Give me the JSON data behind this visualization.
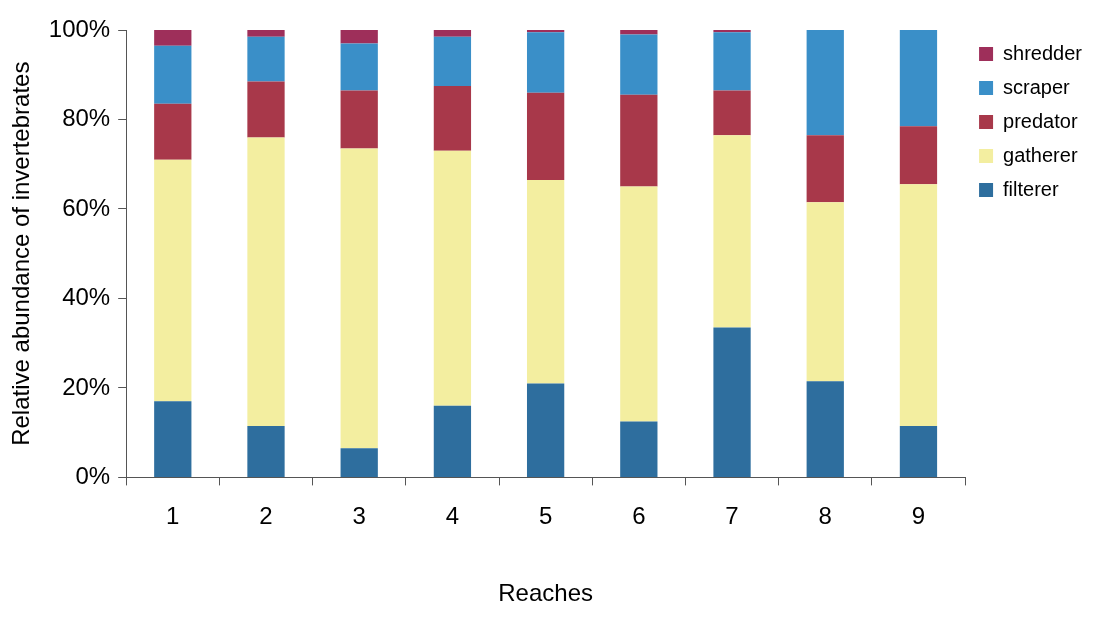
{
  "chart_data": {
    "type": "bar",
    "stacked": true,
    "xlabel": "Reaches",
    "ylabel": "Relative abundance of invertebrates",
    "categories": [
      "1",
      "2",
      "3",
      "4",
      "5",
      "6",
      "7",
      "8",
      "9"
    ],
    "series": [
      {
        "name": "filterer",
        "color": "#2e6e9e",
        "values": [
          17,
          11.5,
          6.5,
          16,
          21,
          12.5,
          33.5,
          21.5,
          11.5
        ]
      },
      {
        "name": "gatherer",
        "color": "#f3eea0",
        "values": [
          54,
          64.5,
          67,
          57,
          45.5,
          52.5,
          43,
          40,
          54
        ]
      },
      {
        "name": "predator",
        "color": "#a8384a",
        "values": [
          12.5,
          12.5,
          13,
          14.5,
          19.5,
          20.5,
          10,
          15,
          13
        ]
      },
      {
        "name": "scraper",
        "color": "#3a8fc8",
        "values": [
          13,
          10,
          10.5,
          11,
          13.5,
          13.5,
          13,
          23.5,
          21.5
        ]
      },
      {
        "name": "shredder",
        "color": "#9e2f5a",
        "values": [
          3.5,
          1.5,
          3,
          1.5,
          0.5,
          1,
          0.5,
          0,
          0
        ]
      }
    ],
    "ylim": [
      0,
      100
    ],
    "yticks": [
      {
        "value": 0,
        "label": "0%"
      },
      {
        "value": 20,
        "label": "20%"
      },
      {
        "value": 40,
        "label": "40%"
      },
      {
        "value": 60,
        "label": "60%"
      },
      {
        "value": 80,
        "label": "80%"
      },
      {
        "value": 100,
        "label": "100%"
      }
    ],
    "grid": false,
    "legend": "top right"
  }
}
